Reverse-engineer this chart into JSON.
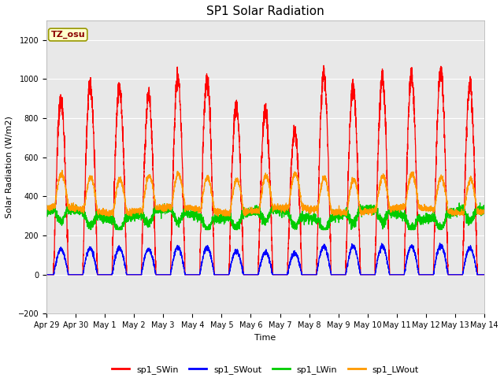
{
  "title": "SP1 Solar Radiation",
  "ylabel": "Solar Radiation (W/m2)",
  "xlabel": "Time",
  "ylim": [
    -200,
    1300
  ],
  "yticks": [
    -200,
    0,
    200,
    400,
    600,
    800,
    1000,
    1200
  ],
  "xlim": [
    0,
    15
  ],
  "xtick_labels": [
    "Apr 29",
    "Apr 30",
    "May 1",
    "May 2",
    "May 3",
    "May 4",
    "May 5",
    "May 6",
    "May 7",
    "May 8",
    "May 9",
    "May 10",
    "May 11",
    "May 12",
    "May 13",
    "May 14"
  ],
  "xtick_positions": [
    0,
    1,
    2,
    3,
    4,
    5,
    6,
    7,
    8,
    9,
    10,
    11,
    12,
    13,
    14,
    15
  ],
  "colors": {
    "sp1_SWin": "#ff0000",
    "sp1_SWout": "#0000ff",
    "sp1_LWin": "#00cc00",
    "sp1_LWout": "#ff9900"
  },
  "bg_color": "#e8e8e8",
  "annotation_text": "TZ_osu",
  "annotation_bg": "#ffffcc",
  "annotation_border": "#999900",
  "title_fontsize": 11,
  "label_fontsize": 8,
  "tick_fontsize": 7
}
